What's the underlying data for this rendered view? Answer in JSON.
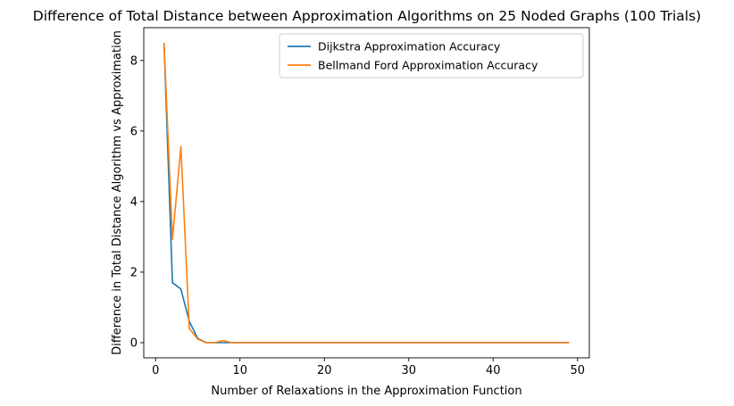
{
  "chart_data": {
    "type": "line",
    "title": "Difference of Total Distance between Approximation Algorithms on 25 Noded Graphs (100 Trials)",
    "xlabel": "Number of Relaxations in the Approximation Function",
    "ylabel": "Difference in Total Distance Algorithm vs Approximation",
    "xlim": [
      -1.4,
      51.4
    ],
    "ylim": [
      -0.43,
      8.93
    ],
    "xticks": [
      0,
      10,
      20,
      30,
      40,
      50
    ],
    "yticks": [
      0,
      2,
      4,
      6,
      8
    ],
    "grid": false,
    "legend_position": "top-right",
    "x": [
      1,
      2,
      3,
      4,
      5,
      6,
      7,
      8,
      9,
      10,
      11,
      12,
      13,
      14,
      15,
      16,
      17,
      18,
      19,
      20,
      21,
      22,
      23,
      24,
      25,
      26,
      27,
      28,
      29,
      30,
      31,
      32,
      33,
      34,
      35,
      36,
      37,
      38,
      39,
      40,
      41,
      42,
      43,
      44,
      45,
      46,
      47,
      48,
      49
    ],
    "series": [
      {
        "name": "Dijkstra Approximation Accuracy",
        "color": "#1f77b4",
        "values": [
          8.5,
          1.7,
          1.52,
          0.6,
          0.12,
          0.0,
          0.0,
          0.0,
          0.0,
          0,
          0,
          0,
          0,
          0,
          0,
          0,
          0,
          0,
          0,
          0,
          0,
          0,
          0,
          0,
          0,
          0,
          0,
          0,
          0,
          0,
          0,
          0,
          0,
          0,
          0,
          0,
          0,
          0,
          0,
          0,
          0,
          0,
          0,
          0,
          0,
          0,
          0,
          0,
          0
        ]
      },
      {
        "name": "Bellmand Ford Approximation Accuracy",
        "color": "#ff7f0e",
        "values": [
          8.5,
          2.93,
          5.56,
          0.4,
          0.1,
          0.0,
          0.0,
          0.06,
          0.0,
          0,
          0,
          0,
          0,
          0,
          0,
          0,
          0,
          0,
          0,
          0,
          0,
          0,
          0,
          0,
          0,
          0,
          0,
          0,
          0,
          0,
          0,
          0,
          0,
          0,
          0,
          0,
          0,
          0,
          0,
          0,
          0,
          0,
          0,
          0,
          0,
          0,
          0,
          0,
          0
        ]
      }
    ]
  }
}
